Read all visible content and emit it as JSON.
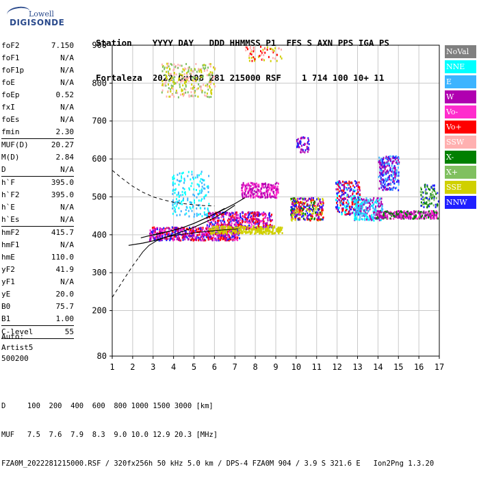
{
  "logo": {
    "line1": "Lowell",
    "line2": "DIGISONDE"
  },
  "header": {
    "line1": "Station    YYYY DAY   DDD HHMMSS P1  FFS S AXN PPS IGA PS",
    "line2": "Fortaleza  2022 Out08 281 215000 RSF    1 714 100 10+ 11"
  },
  "params": [
    {
      "label": "foF2",
      "value": "7.150"
    },
    {
      "label": "foF1",
      "value": "N/A"
    },
    {
      "label": "foF1p",
      "value": "N/A"
    },
    {
      "label": "foE",
      "value": "N/A"
    },
    {
      "label": "foEp",
      "value": "0.52"
    },
    {
      "label": "fxI",
      "value": "N/A"
    },
    {
      "label": "foEs",
      "value": "N/A"
    },
    {
      "label": "fmin",
      "value": "2.30",
      "sep": true
    },
    {
      "label": "MUF(D)",
      "value": "20.27"
    },
    {
      "label": "M(D)",
      "value": "2.84"
    },
    {
      "label": "D",
      "value": "N/A",
      "sep": true
    },
    {
      "label": "h`F",
      "value": "395.0"
    },
    {
      "label": "h`F2",
      "value": "395.0"
    },
    {
      "label": "h`E",
      "value": "N/A"
    },
    {
      "label": "h`Es",
      "value": "N/A",
      "sep": true
    },
    {
      "label": "hmF2",
      "value": "415.7"
    },
    {
      "label": "hmF1",
      "value": "N/A"
    },
    {
      "label": "hmE",
      "value": "110.0"
    },
    {
      "label": "yF2",
      "value": "41.9"
    },
    {
      "label": "yF1",
      "value": "N/A"
    },
    {
      "label": "yE",
      "value": "20.0"
    },
    {
      "label": "B0",
      "value": "75.7"
    },
    {
      "label": "B1",
      "value": "1.00",
      "sep": true
    },
    {
      "label": "C-level",
      "value": "55",
      "sep": true
    }
  ],
  "auto": {
    "line1": "Auto:",
    "line2": "Artist5",
    "line3": "500200"
  },
  "legend": [
    {
      "label": "NoVal",
      "color": "#808080"
    },
    {
      "label": "NNE",
      "color": "#00ffff"
    },
    {
      "label": "E",
      "color": "#3cb4ff"
    },
    {
      "label": "W",
      "color": "#b000b0"
    },
    {
      "label": "Vo-",
      "color": "#ff2ccd"
    },
    {
      "label": "Vo+",
      "color": "#ff0000"
    },
    {
      "label": "SSW",
      "color": "#ffb0b0"
    },
    {
      "label": "X-",
      "color": "#008000"
    },
    {
      "label": "X+",
      "color": "#80c060"
    },
    {
      "label": "SSE",
      "color": "#d0d000"
    },
    {
      "label": "NNW",
      "color": "#2020ff"
    }
  ],
  "footer": {
    "line1": "D     100  200  400  600  800 1000 1500 3000 [km]",
    "line2": "MUF   7.5  7.6  7.9  8.3  9.0 10.0 12.9 20.3 [MHz]",
    "line3": "FZA0M_2022281215000.RSF / 320fx256h 50 kHz 5.0 km / DPS-4 FZA0M 904 / 3.9 S 321.6 E   Ion2Png 1.3.20"
  },
  "chart_data": {
    "type": "scatter",
    "xlim": [
      1,
      17
    ],
    "ylim": [
      80,
      900
    ],
    "x_ticks": [
      1,
      2,
      3,
      4,
      5,
      6,
      7,
      8,
      9,
      10,
      11,
      12,
      13,
      14,
      15,
      16,
      17
    ],
    "y_ticks": [
      80,
      200,
      300,
      400,
      500,
      600,
      700,
      800,
      900
    ],
    "grid": true,
    "traces": [
      {
        "name": "trace-o",
        "x": [
          1.8,
          2.5,
          3.0,
          3.5,
          4.0,
          4.5,
          5.0,
          5.5,
          6.0,
          6.5,
          7.0
        ],
        "y": [
          372,
          378,
          384,
          392,
          400,
          410,
          420,
          432,
          445,
          460,
          478
        ]
      },
      {
        "name": "trace-x",
        "x": [
          2.4,
          3.0,
          3.5,
          4.0,
          4.5,
          5.0,
          5.5,
          6.0,
          6.5,
          7.0,
          7.5
        ],
        "y": [
          392,
          400,
          406,
          412,
          420,
          430,
          442,
          455,
          468,
          482,
          498
        ]
      }
    ],
    "profile_solid": {
      "x": [
        2.3,
        2.5,
        2.8,
        3.2,
        3.6,
        4.0,
        4.5,
        5.0,
        5.5,
        6.0,
        6.5,
        7.0,
        7.15
      ],
      "y": [
        340,
        355,
        372,
        385,
        393,
        398,
        402,
        405,
        408,
        411,
        413,
        415,
        415.7
      ]
    },
    "profile_dashed_low": {
      "x": [
        1.0,
        1.3,
        1.6,
        2.0,
        2.3
      ],
      "y": [
        235,
        260,
        285,
        318,
        340
      ]
    },
    "profile_dashed_high": {
      "x": [
        1.0,
        1.5,
        2.0,
        2.5,
        3.0,
        3.5,
        4.0,
        4.5,
        5.0,
        5.5,
        6.0
      ],
      "y": [
        570,
        548,
        528,
        512,
        500,
        492,
        486,
        482,
        479,
        477,
        476
      ]
    },
    "profile_thin": {
      "x": [
        3.0,
        3.5,
        4.0,
        4.5,
        5.0,
        5.5,
        6.0,
        6.5
      ],
      "y": [
        398,
        405,
        412,
        420,
        430,
        442,
        455,
        470
      ]
    },
    "clusters": [
      {
        "cx": 5.0,
        "cy": 405,
        "w": 4.4,
        "h": 35,
        "n": 650,
        "colors": [
          "#b000b0",
          "#ff2ccd",
          "#ff0000",
          "#2020ff"
        ]
      },
      {
        "cx": 7.2,
        "cy": 440,
        "w": 3.2,
        "h": 45,
        "n": 420,
        "colors": [
          "#b000b0",
          "#ff2ccd",
          "#2020ff",
          "#ff0000"
        ]
      },
      {
        "cx": 7.5,
        "cy": 415,
        "w": 3.6,
        "h": 20,
        "n": 260,
        "colors": [
          "#d0d000"
        ]
      },
      {
        "cx": 8.2,
        "cy": 520,
        "w": 1.8,
        "h": 40,
        "n": 220,
        "colors": [
          "#b000b0",
          "#ff2ccd"
        ]
      },
      {
        "cx": 10.5,
        "cy": 470,
        "w": 1.6,
        "h": 60,
        "n": 300,
        "colors": [
          "#b000b0",
          "#2020ff",
          "#008000",
          "#d0d000",
          "#ff0000"
        ]
      },
      {
        "cx": 12.5,
        "cy": 500,
        "w": 1.2,
        "h": 90,
        "n": 260,
        "colors": [
          "#2020ff",
          "#00ffff",
          "#b000b0",
          "#ff0000"
        ]
      },
      {
        "cx": 13.5,
        "cy": 470,
        "w": 1.4,
        "h": 60,
        "n": 240,
        "colors": [
          "#3cb4ff",
          "#00ffff",
          "#b000b0"
        ]
      },
      {
        "cx": 14.5,
        "cy": 565,
        "w": 1.0,
        "h": 90,
        "n": 260,
        "colors": [
          "#2020ff",
          "#3cb4ff",
          "#b000b0"
        ]
      },
      {
        "cx": 15.4,
        "cy": 455,
        "w": 3.0,
        "h": 20,
        "n": 300,
        "colors": [
          "#b000b0",
          "#ff2ccd",
          "#008000"
        ]
      },
      {
        "cx": 4.8,
        "cy": 510,
        "w": 1.8,
        "h": 120,
        "n": 170,
        "colors": [
          "#3cb4ff",
          "#00ffff"
        ]
      },
      {
        "cx": 4.7,
        "cy": 810,
        "w": 2.6,
        "h": 90,
        "n": 260,
        "colors": [
          "#d0d000",
          "#80c060",
          "#ffb0b0"
        ]
      },
      {
        "cx": 16.5,
        "cy": 505,
        "w": 0.9,
        "h": 60,
        "n": 90,
        "colors": [
          "#80c060",
          "#2020ff",
          "#008000"
        ]
      },
      {
        "cx": 10.3,
        "cy": 640,
        "w": 0.6,
        "h": 40,
        "n": 50,
        "colors": [
          "#2020ff",
          "#b000b0"
        ]
      },
      {
        "cx": 8.3,
        "cy": 880,
        "w": 2.0,
        "h": 40,
        "n": 60,
        "colors": [
          "#ff0000",
          "#ffb0b0",
          "#d0d000"
        ]
      }
    ]
  }
}
